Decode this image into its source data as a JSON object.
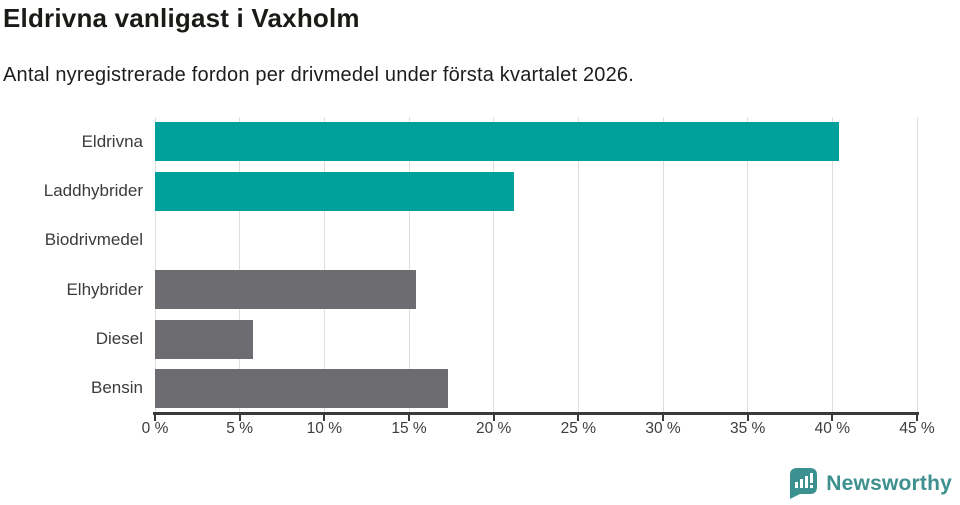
{
  "title": "Eldrivna vanligast i Vaxholm",
  "subtitle": "Antal nyregistrerade fordon per drivmedel under första kvartalet 2026.",
  "branding": {
    "name": "Newsworthy",
    "logo_icon": "newsworthy-speech-bubble-bars-icon",
    "text_color": "#3e908e",
    "icon_color": "#3b918f"
  },
  "colors": {
    "teal_bar": "#00a19a",
    "gray_bar": "#6c6c71",
    "axis": "#3a3a3a",
    "gridline": "#dedede",
    "category_label": "#3b3b3b",
    "tick_label": "#3d3d3d"
  },
  "chart_data": {
    "type": "bar",
    "orientation": "horizontal",
    "title": "Eldrivna vanligast i Vaxholm",
    "subtitle": "Antal nyregistrerade fordon per drivmedel under första kvartalet 2026.",
    "categories": [
      "Eldrivna",
      "Laddhybrider",
      "Biodrivmedel",
      "Elhybrider",
      "Diesel",
      "Bensin"
    ],
    "values": [
      40.4,
      21.2,
      0,
      15.4,
      5.8,
      17.3
    ],
    "bar_colors": [
      "#00a19a",
      "#00a19a",
      null,
      "#6c6c71",
      "#6c6c71",
      "#6c6c71"
    ],
    "xlim": [
      0,
      45
    ],
    "x_tick_step": 5,
    "x_tick_suffix": " %",
    "xlabel": "",
    "ylabel": "",
    "grid": "vertical",
    "legend": "none"
  }
}
